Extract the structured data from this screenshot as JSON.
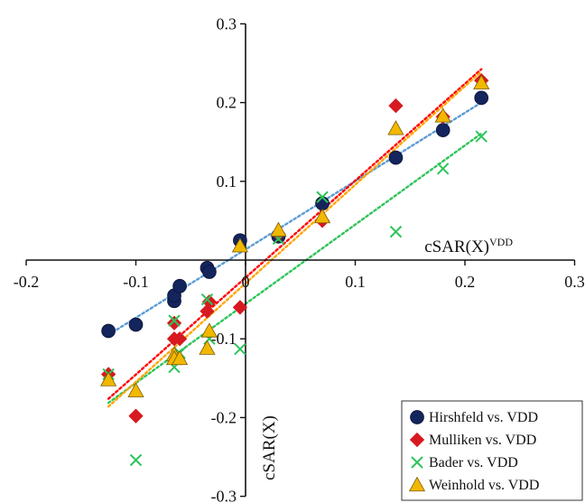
{
  "chart_data": {
    "type": "scatter",
    "xlabel": "cSAR(X)",
    "xlabel_superscript": "VDD",
    "ylabel": "cSAR(X)",
    "xlim": [
      -0.2,
      0.3
    ],
    "ylim": [
      -0.3,
      0.3
    ],
    "x_ticks": [
      "-0.2",
      "-0.1",
      "0",
      "0.1",
      "0.2",
      "0.3"
    ],
    "y_ticks": [
      "0.3",
      "0.2",
      "0.1",
      "-0.1",
      "-0.2",
      "-0.3"
    ],
    "legend_position": "bottom-right",
    "trendlines": "linear, dotted",
    "series": [
      {
        "name": "Hirshfeld vs. VDD",
        "marker": "circle",
        "color": "#14245c",
        "trend_color": "#5b9bd5",
        "x": [
          -0.125,
          -0.1,
          -0.065,
          -0.065,
          -0.06,
          -0.035,
          -0.033,
          -0.005,
          0.03,
          0.07,
          0.137,
          0.18,
          0.215
        ],
        "y": [
          -0.09,
          -0.082,
          -0.052,
          -0.045,
          -0.033,
          -0.01,
          -0.015,
          0.025,
          0.03,
          0.072,
          0.13,
          0.165,
          0.206
        ]
      },
      {
        "name": "Mulliken vs. VDD",
        "marker": "diamond",
        "color": "#d71920",
        "trend_color": "#ff0000",
        "x": [
          -0.125,
          -0.1,
          -0.065,
          -0.065,
          -0.06,
          -0.035,
          -0.033,
          -0.005,
          0.03,
          0.07,
          0.137,
          0.18,
          0.215
        ],
        "y": [
          -0.145,
          -0.198,
          -0.08,
          -0.1,
          -0.1,
          -0.065,
          -0.053,
          -0.06,
          0.033,
          0.05,
          0.196,
          0.182,
          0.228
        ]
      },
      {
        "name": "Bader vs. VDD",
        "marker": "x",
        "color": "#2ec45a",
        "trend_color": "#2ec45a",
        "x": [
          -0.125,
          -0.1,
          -0.065,
          -0.065,
          -0.06,
          -0.035,
          -0.033,
          -0.005,
          0.03,
          0.07,
          0.137,
          0.18,
          0.215
        ],
        "y": [
          -0.145,
          -0.254,
          -0.077,
          -0.136,
          -0.118,
          -0.05,
          -0.1,
          -0.113,
          0.027,
          0.08,
          0.036,
          0.116,
          0.157
        ]
      },
      {
        "name": "Weinhold vs. VDD",
        "marker": "triangle",
        "color": "#f2b800",
        "trend_color": "#ffa500",
        "x": [
          -0.125,
          -0.1,
          -0.065,
          -0.065,
          -0.06,
          -0.035,
          -0.033,
          -0.005,
          0.03,
          0.07,
          0.137,
          0.18,
          0.215
        ],
        "y": [
          -0.152,
          -0.166,
          -0.12,
          -0.125,
          -0.125,
          -0.112,
          -0.09,
          0.018,
          0.038,
          0.055,
          0.167,
          0.183,
          0.225
        ]
      }
    ]
  }
}
